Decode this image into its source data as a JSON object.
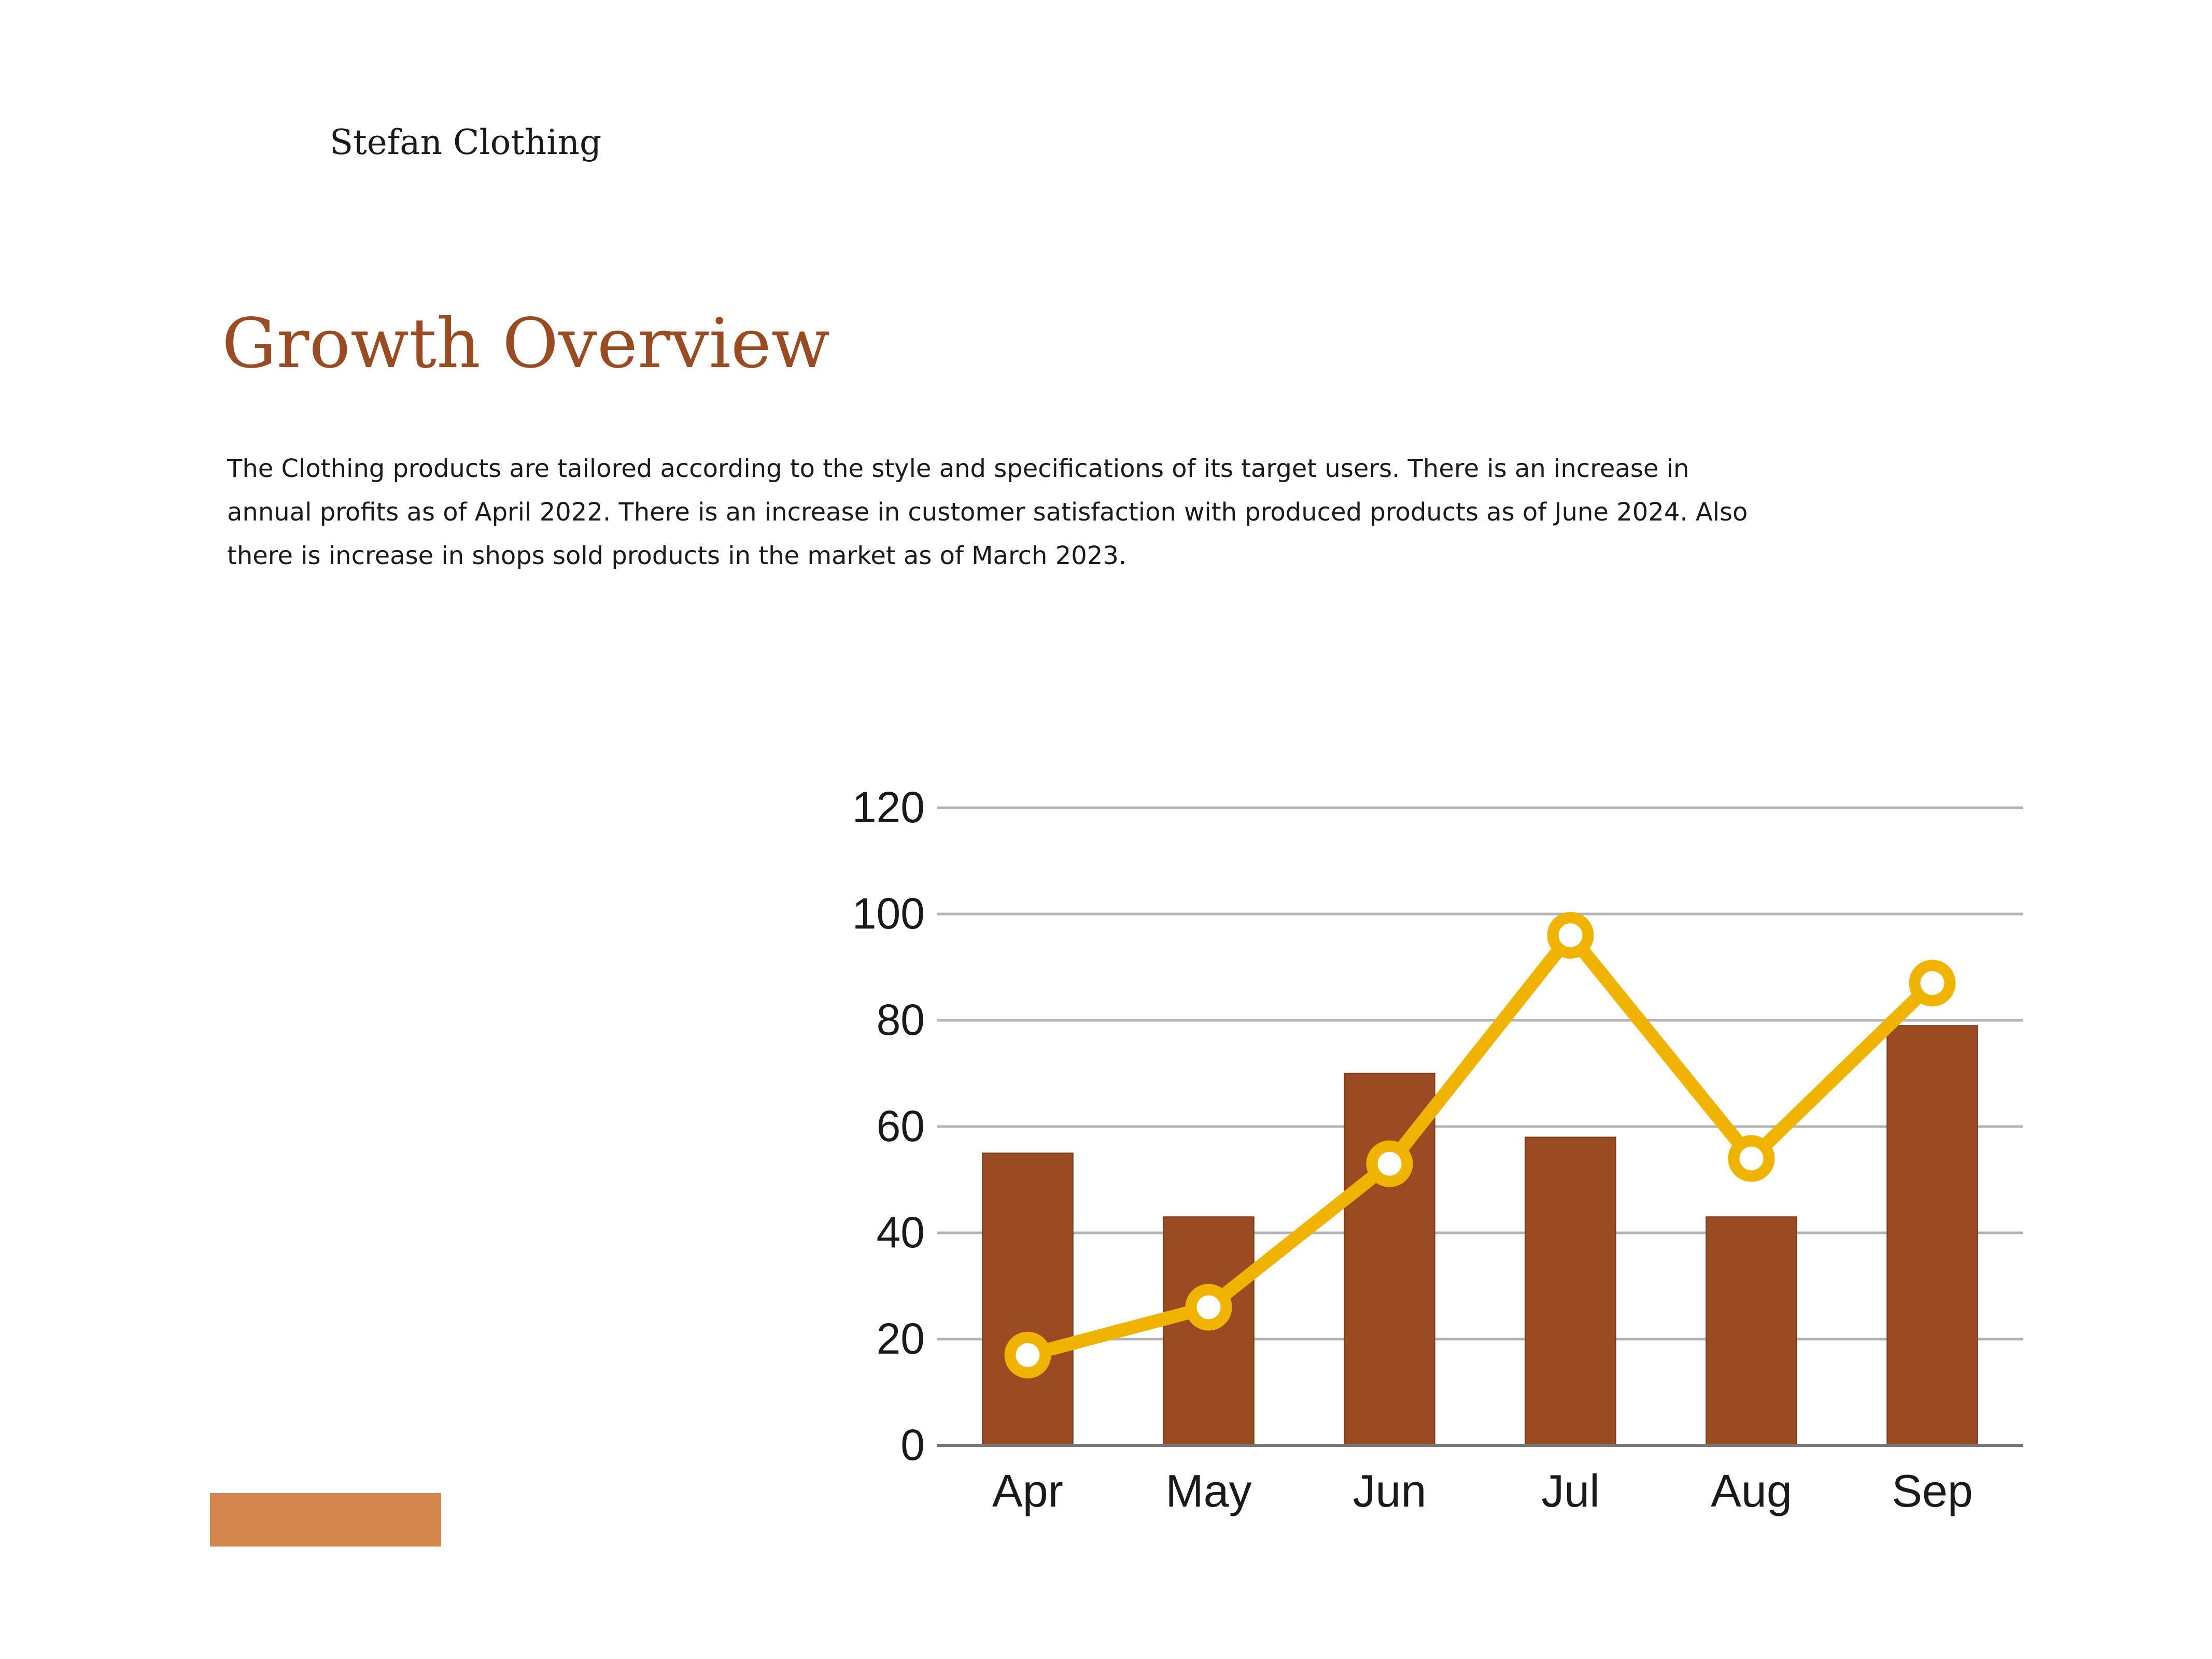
{
  "header": {
    "brand": "Stefan Clothing",
    "title": "Growth Overview",
    "description": "The Clothing products  are tailored according to the style and specifications of its target users. There is an increase in annual profits as of April 2022. There is an increase in customer satisfaction with produced products as of June 2024. Also there is increase in shops sold products in the market as of March 2023."
  },
  "colors": {
    "title": "#9a4b22",
    "bar": "#9a4b22",
    "line": "#f0b400",
    "accent_bar": "#d4864c",
    "grid": "#b3b3b3"
  },
  "chart_data": {
    "type": "bar",
    "categories": [
      "Apr",
      "May",
      "Jun",
      "Jul",
      "Aug",
      "Sep"
    ],
    "series": [
      {
        "type": "bar",
        "values": [
          55,
          43,
          70,
          58,
          43,
          79
        ]
      },
      {
        "type": "line",
        "values": [
          17,
          26,
          53,
          96,
          54,
          87
        ]
      }
    ],
    "title": "",
    "xlabel": "",
    "ylabel": "",
    "ylim": [
      0,
      120
    ],
    "yticks": [
      "0",
      "20",
      "40",
      "60",
      "80",
      "100",
      "120"
    ],
    "grid": true,
    "legend": "none"
  }
}
